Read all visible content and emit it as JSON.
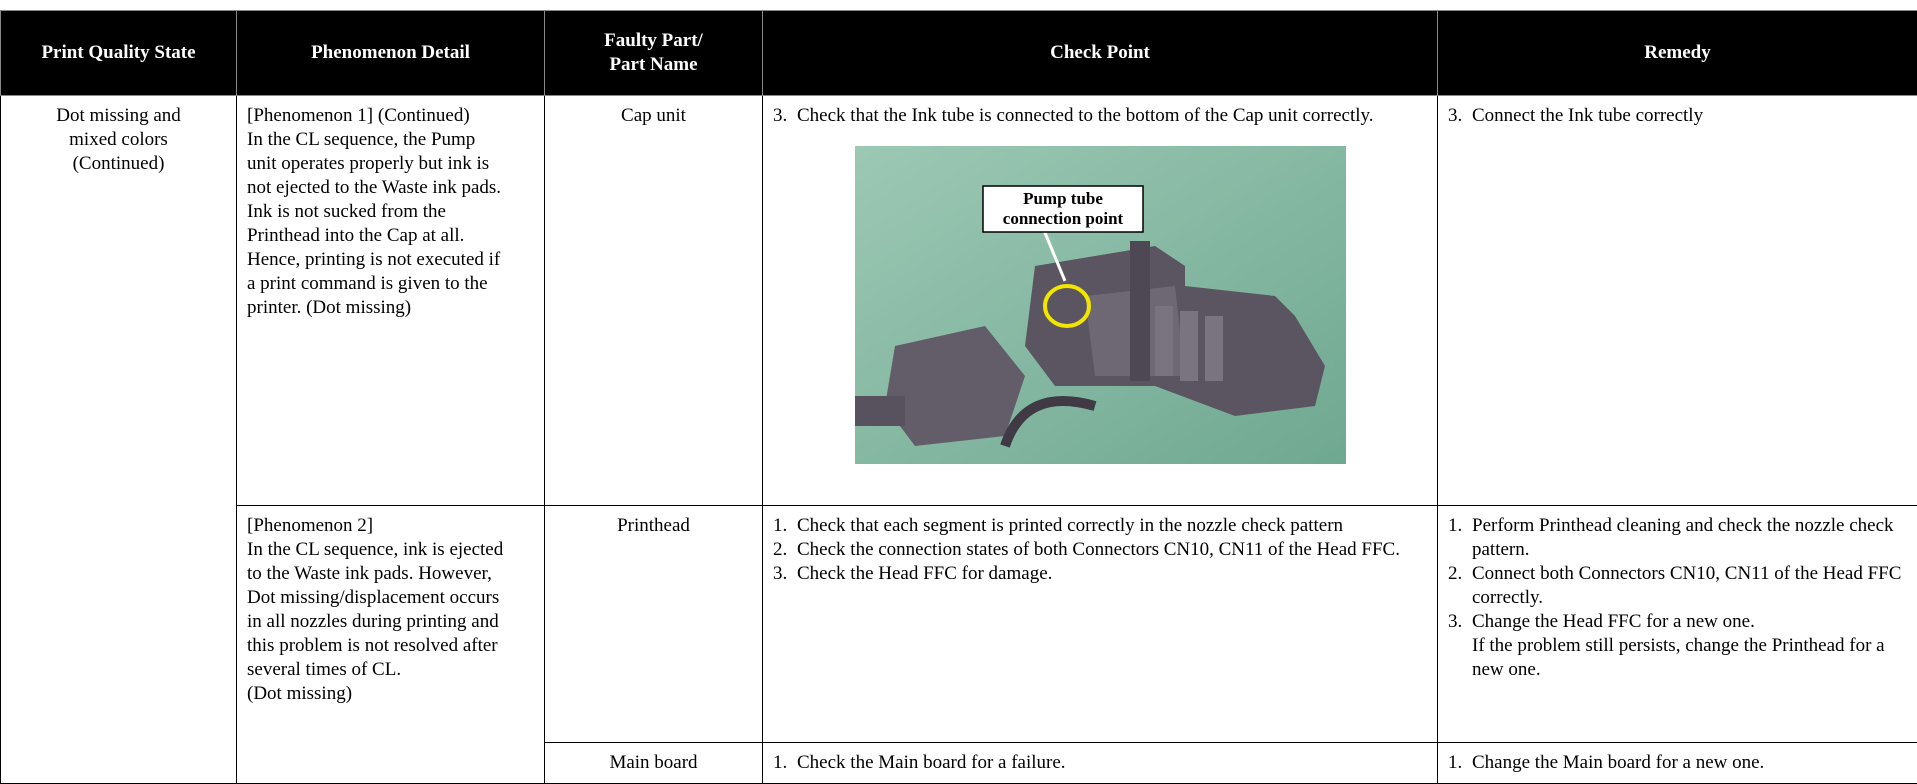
{
  "header": {
    "state": "Print Quality State",
    "detail": "Phenomenon Detail",
    "part": [
      "Faulty Part/",
      "Part Name"
    ],
    "check": "Check Point",
    "remedy": "Remedy"
  },
  "state": [
    "Dot missing and",
    "mixed colors",
    "(Continued)"
  ],
  "phenomena": [
    {
      "lines": [
        "[Phenomenon 1] (Continued)",
        "In the CL sequence, the Pump",
        "unit operates properly but ink is",
        "not ejected to the Waste ink pads.",
        "Ink is not sucked from the",
        "Printhead into the Cap at all.",
        "Hence, printing is not executed if",
        "a print command is given to the",
        "printer. (Dot missing)"
      ],
      "parts": [
        {
          "name": "Cap unit",
          "checks": [
            {
              "num": "3.",
              "text": [
                "Check that the Ink tube is connected to the bottom of the Cap unit correctly."
              ]
            }
          ],
          "figure": {
            "label": [
              "Pump tube",
              "connection point"
            ]
          },
          "remedies": [
            {
              "num": "3.",
              "text": [
                "Connect the Ink tube correctly"
              ]
            }
          ]
        }
      ]
    },
    {
      "lines": [
        "[Phenomenon 2]",
        "In the CL sequence, ink is ejected",
        "to the Waste ink pads. However,",
        "Dot missing/displacement occurs",
        "in all nozzles during printing and",
        "this problem is not resolved after",
        "several times of CL.",
        "(Dot missing)"
      ],
      "parts": [
        {
          "name": "Printhead",
          "checks": [
            {
              "num": "1.",
              "text": [
                "Check that each segment is printed correctly in the nozzle check pattern"
              ]
            },
            {
              "num": "2.",
              "text": [
                "Check the connection states of both Connectors CN10, CN11 of the Head FFC."
              ]
            },
            {
              "num": "3.",
              "text": [
                "Check the Head FFC for damage."
              ]
            }
          ],
          "remedies": [
            {
              "num": "1.",
              "text": [
                "Perform Printhead cleaning and check the nozzle check pattern."
              ]
            },
            {
              "num": "2.",
              "text": [
                "Connect both Connectors CN10, CN11 of the Head FFC correctly."
              ]
            },
            {
              "num": "3.",
              "text": [
                "Change the Head FFC for a new one.",
                "If the problem still persists, change the Printhead for a new one."
              ]
            }
          ]
        },
        {
          "name": "Main board",
          "checks": [
            {
              "num": "1.",
              "text": [
                "Check the Main board for a failure."
              ]
            }
          ],
          "remedies": [
            {
              "num": "1.",
              "text": [
                "Change the Main board for a new one."
              ]
            }
          ]
        }
      ]
    }
  ]
}
